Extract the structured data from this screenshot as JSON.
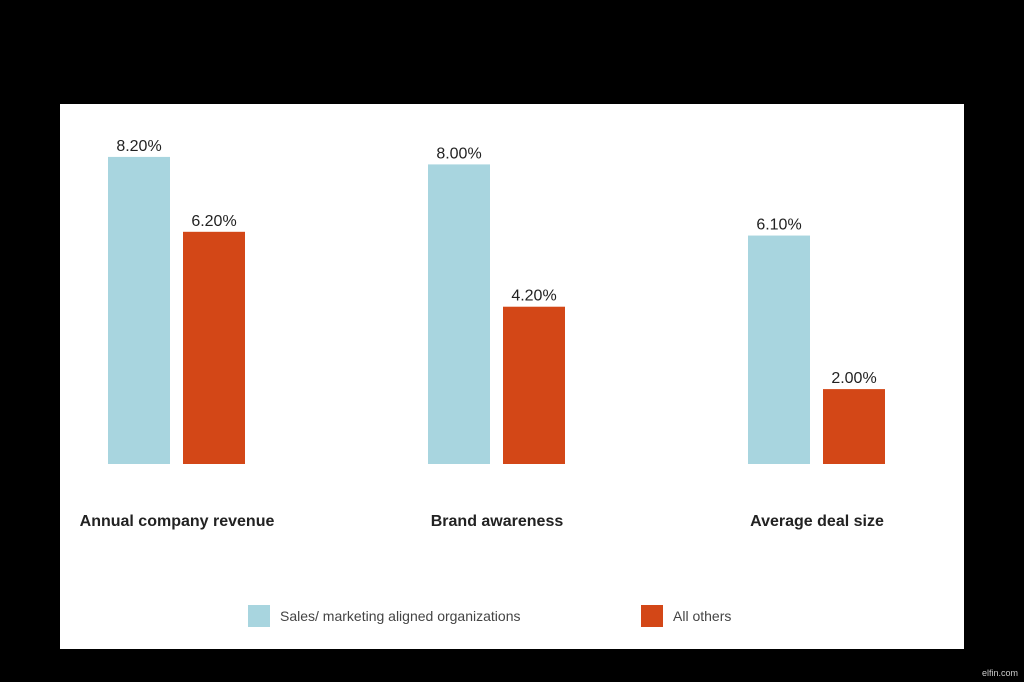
{
  "chart_data": {
    "type": "bar",
    "categories": [
      "Annual company revenue",
      "Brand awareness",
      "Average deal size"
    ],
    "series": [
      {
        "name": "Sales/ marketing aligned organizations",
        "values": [
          8.2,
          8.0,
          6.1
        ],
        "labels": [
          "8.20%",
          "8.00%",
          "6.10%"
        ]
      },
      {
        "name": "All others",
        "values": [
          6.2,
          4.2,
          2.0
        ],
        "labels": [
          "6.20%",
          "4.20%",
          "2.00%"
        ]
      }
    ],
    "colors": [
      "#a8d5df",
      "#d34717"
    ],
    "ylim": [
      0,
      9
    ],
    "grid": false,
    "legend": "bottom"
  },
  "watermark": "elfin.com"
}
